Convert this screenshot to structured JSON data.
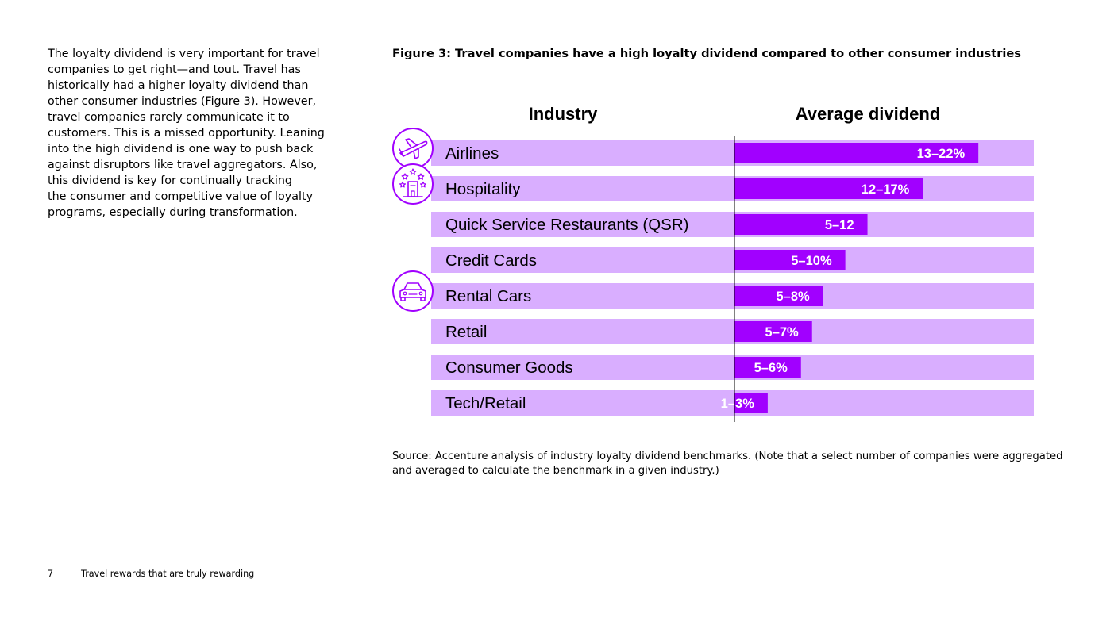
{
  "body_text": "The loyalty dividend is very important for travel\ncompanies to get right—and tout. Travel has\nhistorically had a higher loyalty dividend than\nother consumer industries (Figure 3). However,\ntravel companies rarely communicate it to\ncustomers. This is a missed opportunity. Leaning\ninto the high dividend is one way to push back\nagainst disruptors like travel aggregators. Also,\nthis dividend is key for continually tracking\nthe consumer and competitive value of loyalty\nprograms, especially during transformation.",
  "figure": {
    "title": "Figure 3: Travel companies have a high loyalty dividend compared to other consumer industries",
    "source": "Source: Accenture analysis of industry loyalty dividend benchmarks. (Note that a select number of companies were aggregated and averaged to calculate the benchmark in a given industry.)"
  },
  "footer": {
    "page_number": "7",
    "document_title": "Travel rewards that are truly rewarding"
  },
  "colors": {
    "row_background": "#d9aeff",
    "bar": "#a100ff",
    "icon": "#a100ff",
    "text": "#000000"
  },
  "chart_data": {
    "type": "bar",
    "orientation": "horizontal",
    "column_headers": [
      "Industry",
      "Average dividend"
    ],
    "categories": [
      "Airlines",
      "Hospitality",
      "Quick Service Restaurants (QSR)",
      "Credit Cards",
      "Rental Cars",
      "Retail",
      "Consumer Goods",
      "Tech/Retail"
    ],
    "value_labels": [
      "13–22%",
      "12–17%",
      "5–12",
      "5–10%",
      "5–8%",
      "5–7%",
      "5–6%",
      "1–3%"
    ],
    "values_range": [
      [
        13,
        22
      ],
      [
        12,
        17
      ],
      [
        5,
        12
      ],
      [
        5,
        10
      ],
      [
        5,
        8
      ],
      [
        5,
        7
      ],
      [
        5,
        6
      ],
      [
        1,
        3
      ]
    ],
    "values": [
      22,
      17,
      12,
      10,
      8,
      7,
      6,
      3
    ],
    "xlim": [
      0,
      27
    ],
    "icons": [
      "airplane-icon",
      "hotel-stars-icon",
      "",
      "",
      "car-icon",
      "",
      "",
      ""
    ],
    "legend": "none",
    "grid": false
  }
}
